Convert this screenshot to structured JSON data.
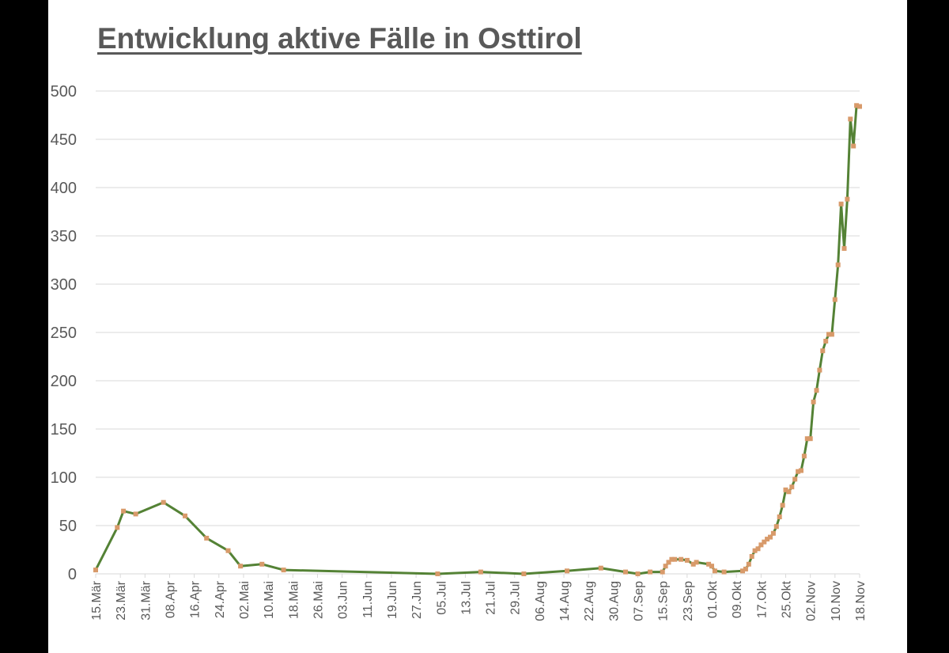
{
  "chart_data": {
    "type": "line",
    "title": "Entwicklung aktive Fälle in Osttirol",
    "xlabel": "",
    "ylabel": "",
    "ylim": [
      0,
      500
    ],
    "yticks": [
      "0",
      "50",
      "100",
      "150",
      "200",
      "250",
      "300",
      "350",
      "400",
      "450",
      "500"
    ],
    "x_tick_labels": [
      "15.Mär",
      "23.Mär",
      "31.Mär",
      "08.Apr",
      "16.Apr",
      "24.Apr",
      "02.Mai",
      "10.Mai",
      "18.Mai",
      "26.Mai",
      "03.Jun",
      "11.Jun",
      "19.Jun",
      "27.Jun",
      "05.Jul",
      "13.Jul",
      "21.Jul",
      "29.Jul",
      "06.Aug",
      "14.Aug",
      "22.Aug",
      "30.Aug",
      "07.Sep",
      "15.Sep",
      "23.Sep",
      "01.Okt",
      "09.Okt",
      "17.Okt",
      "25.Okt",
      "02.Nov",
      "10.Nov",
      "18.Nov"
    ],
    "grid": true,
    "legend": "none",
    "colors": {
      "line": "#548235",
      "marker": "#d89a6a"
    },
    "series": [
      {
        "x": [
          "2020-03-15",
          "2020-03-22",
          "2020-03-24",
          "2020-03-28",
          "2020-04-06",
          "2020-04-13",
          "2020-04-20",
          "2020-04-27",
          "2020-05-01",
          "2020-05-08",
          "2020-05-15",
          "2020-07-04",
          "2020-07-18",
          "2020-08-01",
          "2020-08-15",
          "2020-08-26",
          "2020-09-03",
          "2020-09-07",
          "2020-09-11",
          "2020-09-15",
          "2020-09-16",
          "2020-09-17",
          "2020-09-18",
          "2020-09-19",
          "2020-09-21",
          "2020-09-23",
          "2020-09-25",
          "2020-09-26",
          "2020-09-30",
          "2020-10-01",
          "2020-10-02",
          "2020-10-05",
          "2020-10-11",
          "2020-10-12",
          "2020-10-13",
          "2020-10-14",
          "2020-10-15",
          "2020-10-16",
          "2020-10-17",
          "2020-10-18",
          "2020-10-19",
          "2020-10-20",
          "2020-10-21",
          "2020-10-22",
          "2020-10-23",
          "2020-10-24",
          "2020-10-25",
          "2020-10-26",
          "2020-10-27",
          "2020-10-28",
          "2020-10-29",
          "2020-10-30",
          "2020-10-31",
          "2020-11-01",
          "2020-11-02",
          "2020-11-03",
          "2020-11-04",
          "2020-11-05",
          "2020-11-06",
          "2020-11-07",
          "2020-11-08",
          "2020-11-09",
          "2020-11-10",
          "2020-11-11",
          "2020-11-12",
          "2020-11-13",
          "2020-11-14",
          "2020-11-15",
          "2020-11-16",
          "2020-11-17",
          "2020-11-18"
        ],
        "values": [
          4,
          48,
          65,
          62,
          74,
          60,
          37,
          24,
          8,
          10,
          4,
          0,
          2,
          0,
          3,
          6,
          2,
          0,
          2,
          2,
          8,
          12,
          15,
          15,
          15,
          14,
          10,
          12,
          10,
          8,
          3,
          2,
          3,
          5,
          10,
          18,
          24,
          26,
          30,
          33,
          36,
          38,
          42,
          49,
          59,
          71,
          87,
          85,
          90,
          98,
          106,
          107,
          122,
          140,
          140,
          178,
          190,
          211,
          231,
          241,
          248,
          248,
          284,
          320,
          383,
          337,
          388,
          471,
          443,
          485,
          484
        ]
      }
    ]
  }
}
